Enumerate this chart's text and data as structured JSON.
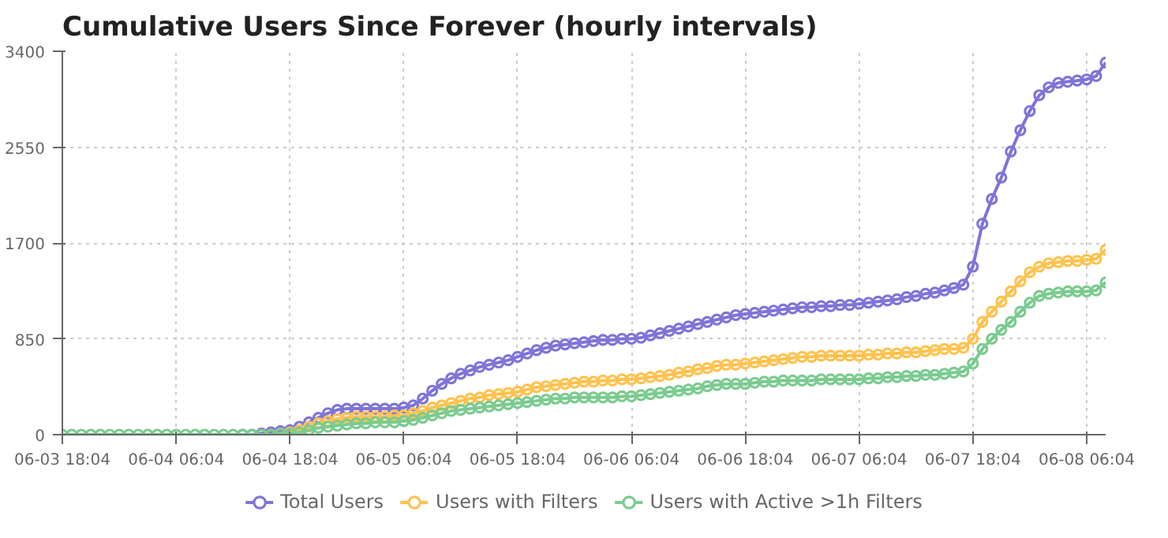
{
  "chart_data": {
    "type": "line",
    "title": "Cumulative Users Since Forever (hourly intervals)",
    "categories": [
      "06-03 18:04",
      null,
      null,
      null,
      null,
      null,
      null,
      null,
      null,
      null,
      null,
      null,
      "06-04 06:04",
      null,
      null,
      null,
      null,
      null,
      null,
      null,
      null,
      null,
      null,
      null,
      "06-04 18:04",
      null,
      null,
      null,
      null,
      null,
      null,
      null,
      null,
      null,
      null,
      null,
      "06-05 06:04",
      null,
      null,
      null,
      null,
      null,
      null,
      null,
      null,
      null,
      null,
      null,
      "06-05 18:04",
      null,
      null,
      null,
      null,
      null,
      null,
      null,
      null,
      null,
      null,
      null,
      "06-06 06:04",
      null,
      null,
      null,
      null,
      null,
      null,
      null,
      null,
      null,
      null,
      null,
      "06-06 18:04",
      null,
      null,
      null,
      null,
      null,
      null,
      null,
      null,
      null,
      null,
      null,
      "06-07 06:04",
      null,
      null,
      null,
      null,
      null,
      null,
      null,
      null,
      null,
      null,
      null,
      "06-07 18:04",
      null,
      null,
      null,
      null,
      null,
      null,
      null,
      null,
      null,
      null,
      null,
      "06-08 06:04",
      null,
      null
    ],
    "series": [
      {
        "name": "Total Users",
        "color": "#7f74d8",
        "values": [
          null,
          null,
          null,
          null,
          null,
          null,
          null,
          null,
          null,
          null,
          null,
          null,
          null,
          null,
          null,
          null,
          null,
          null,
          null,
          0,
          0,
          10,
          20,
          30,
          40,
          70,
          110,
          150,
          190,
          220,
          230,
          230,
          230,
          230,
          230,
          230,
          240,
          260,
          320,
          390,
          450,
          500,
          540,
          570,
          600,
          620,
          640,
          660,
          690,
          720,
          750,
          770,
          790,
          800,
          810,
          820,
          830,
          840,
          840,
          850,
          850,
          860,
          880,
          900,
          920,
          940,
          960,
          980,
          1000,
          1020,
          1040,
          1060,
          1070,
          1080,
          1090,
          1100,
          1110,
          1120,
          1130,
          1130,
          1140,
          1140,
          1150,
          1150,
          1160,
          1170,
          1180,
          1190,
          1200,
          1220,
          1230,
          1250,
          1260,
          1280,
          1300,
          1330,
          1490,
          1870,
          2090,
          2280,
          2510,
          2700,
          2870,
          3010,
          3080,
          3120,
          3130,
          3140,
          3150,
          3180,
          3300
        ]
      },
      {
        "name": "Users with Filters",
        "color": "#ffc24f",
        "values": [
          null,
          null,
          null,
          null,
          null,
          null,
          null,
          null,
          null,
          null,
          null,
          null,
          null,
          null,
          null,
          null,
          null,
          null,
          null,
          null,
          null,
          null,
          0,
          10,
          20,
          40,
          70,
          100,
          120,
          140,
          150,
          160,
          160,
          160,
          160,
          170,
          170,
          190,
          210,
          240,
          260,
          280,
          300,
          320,
          330,
          350,
          360,
          370,
          380,
          400,
          420,
          430,
          440,
          450,
          460,
          470,
          470,
          480,
          480,
          490,
          490,
          500,
          510,
          520,
          530,
          550,
          560,
          580,
          590,
          610,
          620,
          620,
          630,
          640,
          650,
          660,
          670,
          680,
          690,
          690,
          700,
          700,
          700,
          700,
          700,
          710,
          710,
          720,
          720,
          730,
          730,
          740,
          750,
          760,
          760,
          770,
          850,
          1000,
          1090,
          1180,
          1270,
          1360,
          1440,
          1490,
          1520,
          1530,
          1540,
          1540,
          1550,
          1560,
          1640
        ]
      },
      {
        "name": "Users with Active >1h Filters",
        "color": "#7acb8f",
        "values": [
          0,
          0,
          0,
          0,
          0,
          0,
          0,
          0,
          0,
          0,
          0,
          0,
          0,
          0,
          0,
          0,
          0,
          0,
          0,
          0,
          0,
          0,
          0,
          10,
          10,
          20,
          40,
          60,
          70,
          80,
          90,
          100,
          100,
          110,
          110,
          110,
          120,
          130,
          150,
          170,
          190,
          210,
          220,
          230,
          240,
          250,
          260,
          270,
          280,
          290,
          300,
          310,
          320,
          320,
          330,
          330,
          330,
          330,
          330,
          340,
          340,
          350,
          360,
          370,
          380,
          390,
          400,
          410,
          430,
          440,
          450,
          450,
          450,
          460,
          470,
          470,
          480,
          480,
          480,
          480,
          490,
          490,
          490,
          490,
          490,
          500,
          500,
          510,
          510,
          520,
          520,
          530,
          530,
          540,
          550,
          560,
          630,
          760,
          850,
          930,
          1000,
          1090,
          1170,
          1230,
          1250,
          1260,
          1270,
          1270,
          1270,
          1280,
          1350
        ]
      }
    ],
    "ylim": [
      0,
      3400
    ],
    "yticks": [
      0,
      850,
      1700,
      2550,
      3400
    ],
    "grid": true,
    "legend": "bottom",
    "marker": "circle",
    "line_style": "solid"
  }
}
